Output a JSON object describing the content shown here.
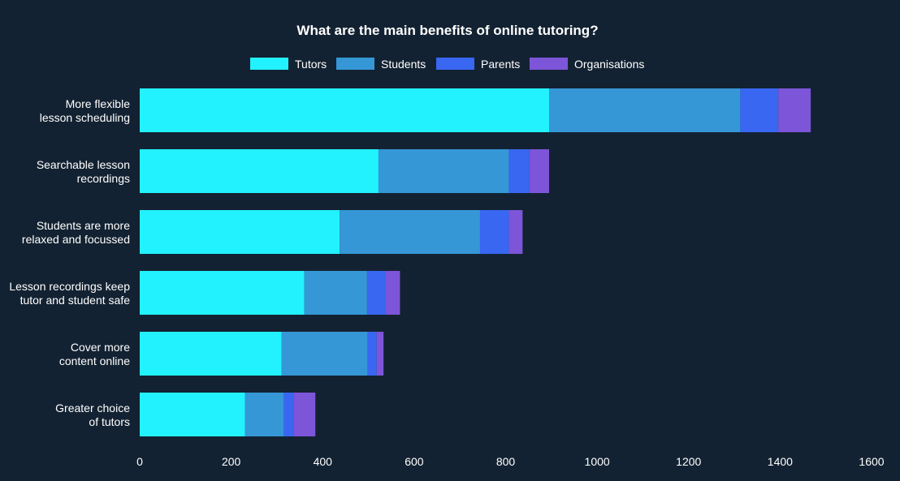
{
  "colors": {
    "background": "#132232",
    "text": "#ffffff",
    "series": [
      "#22f2fe",
      "#3597d6",
      "#3967f1",
      "#7d55d8"
    ]
  },
  "chart_data": {
    "type": "bar",
    "orientation": "horizontal",
    "stacked": true,
    "title": "What are the main benefits of online tutoring?",
    "xlabel": "",
    "ylabel": "",
    "xlim": [
      0,
      1600
    ],
    "x_ticks": [
      0,
      200,
      400,
      600,
      800,
      1000,
      1200,
      1400,
      1600
    ],
    "grid": false,
    "legend_position": "top",
    "categories": [
      [
        "More flexible",
        "lesson scheduling"
      ],
      [
        "Searchable lesson",
        "recordings"
      ],
      [
        "Students are more",
        "relaxed and focussed"
      ],
      [
        "Lesson recordings keep",
        "tutor and student safe"
      ],
      [
        "Cover more",
        "content online"
      ],
      [
        "Greater choice",
        "of tutors"
      ]
    ],
    "series": [
      {
        "name": "Tutors",
        "values": [
          895,
          522,
          437,
          360,
          310,
          230
        ]
      },
      {
        "name": "Students",
        "values": [
          418,
          285,
          307,
          137,
          188,
          85
        ]
      },
      {
        "name": "Parents",
        "values": [
          83,
          45,
          63,
          41,
          20,
          21
        ]
      },
      {
        "name": "Organisations",
        "values": [
          71,
          43,
          30,
          31,
          15,
          48
        ]
      }
    ]
  }
}
